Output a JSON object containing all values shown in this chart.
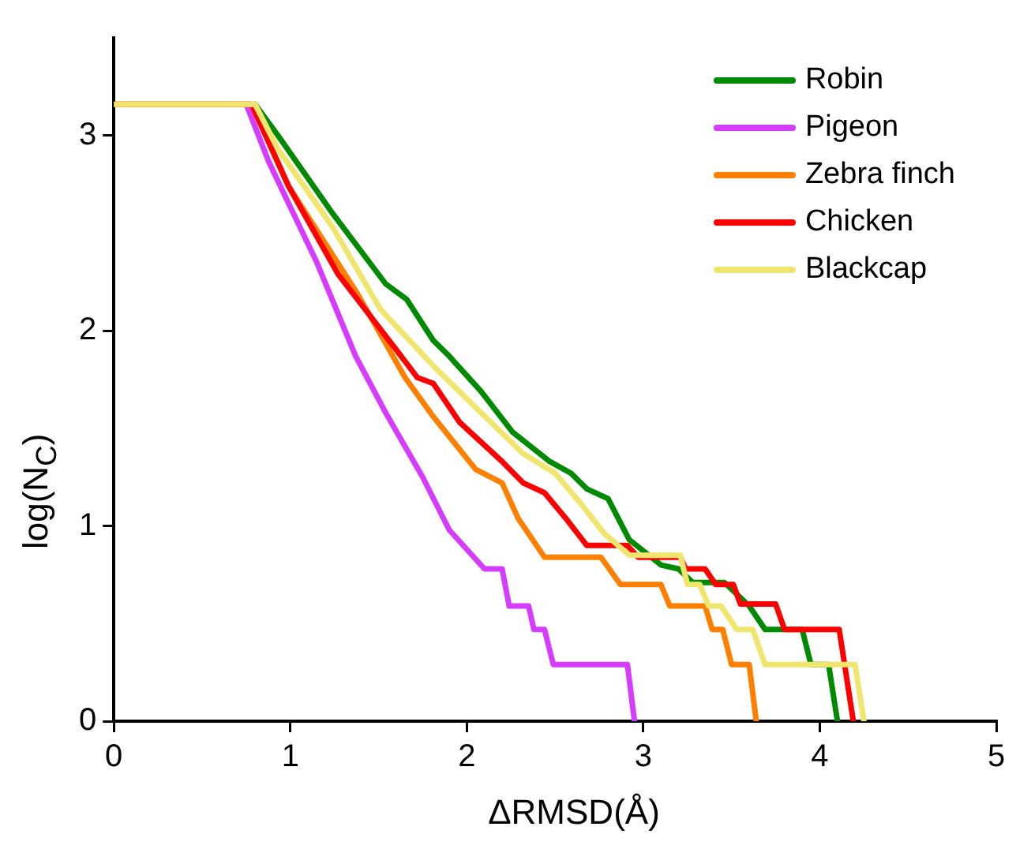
{
  "chart_data": {
    "type": "line",
    "xlabel": "ΔRMSD(Å)",
    "ylabel": "log(N$_{C}$)",
    "xlim": [
      0,
      5
    ],
    "xticks": [
      0,
      1,
      2,
      3,
      4,
      5
    ],
    "ylim": [
      0,
      3.5
    ],
    "yticks": [
      0,
      1,
      2,
      3
    ],
    "grid": false,
    "legend": "top right",
    "marker": "none",
    "line_style": "solid",
    "series": [
      {
        "name": "Robin",
        "color": "#008a00",
        "x": [
          0.8,
          0.93,
          1.24,
          1.54,
          1.66,
          1.81,
          1.9,
          2.08,
          2.26,
          2.47,
          2.59,
          2.68,
          2.8,
          2.92,
          3.1,
          3.2,
          3.28,
          3.46,
          3.6,
          3.69,
          3.9,
          3.95,
          4.05,
          4.1
        ],
        "values": [
          3.16,
          3.0,
          2.6,
          2.24,
          2.16,
          1.95,
          1.87,
          1.69,
          1.48,
          1.33,
          1.27,
          1.19,
          1.14,
          0.93,
          0.8,
          0.78,
          0.71,
          0.71,
          0.59,
          0.47,
          0.47,
          0.29,
          0.29,
          0
        ]
      },
      {
        "name": "Pigeon",
        "color": "#d63cff",
        "x": [
          0.75,
          0.88,
          1.15,
          1.37,
          1.54,
          1.75,
          1.9,
          2.1,
          2.2,
          2.24,
          2.35,
          2.38,
          2.44,
          2.49,
          2.91,
          2.95
        ],
        "values": [
          3.16,
          2.86,
          2.35,
          1.87,
          1.58,
          1.25,
          0.98,
          0.78,
          0.78,
          0.59,
          0.59,
          0.47,
          0.47,
          0.29,
          0.29,
          0
        ]
      },
      {
        "name": "Zebra finch",
        "color": "#ff8000",
        "x": [
          0,
          0.78,
          0.99,
          1.38,
          1.65,
          1.81,
          2.05,
          2.2,
          2.29,
          2.44,
          2.76,
          2.87,
          3.1,
          3.15,
          3.35,
          3.39,
          3.45,
          3.5,
          3.6,
          3.64
        ],
        "values": [
          3.16,
          3.16,
          2.74,
          2.19,
          1.76,
          1.56,
          1.29,
          1.22,
          1.04,
          0.84,
          0.84,
          0.7,
          0.7,
          0.59,
          0.59,
          0.47,
          0.47,
          0.29,
          0.29,
          0
        ]
      },
      {
        "name": "Chicken",
        "color": "#ff0000",
        "x": [
          0,
          0.78,
          0.99,
          1.27,
          1.56,
          1.72,
          1.81,
          1.96,
          2.2,
          2.32,
          2.44,
          2.56,
          2.68,
          2.91,
          2.97,
          3.21,
          3.24,
          3.35,
          3.41,
          3.51,
          3.55,
          3.75,
          3.8,
          4.11,
          4.19
        ],
        "values": [
          3.16,
          3.16,
          2.74,
          2.29,
          1.95,
          1.76,
          1.73,
          1.53,
          1.33,
          1.22,
          1.17,
          1.04,
          0.9,
          0.9,
          0.84,
          0.84,
          0.78,
          0.78,
          0.7,
          0.7,
          0.6,
          0.6,
          0.47,
          0.47,
          0
        ]
      },
      {
        "name": "Blackcap",
        "color": "#f0e66e",
        "x": [
          0,
          0.8,
          0.93,
          1.24,
          1.51,
          1.81,
          2.08,
          2.32,
          2.5,
          2.65,
          2.78,
          2.92,
          3.21,
          3.25,
          3.32,
          3.37,
          3.44,
          3.53,
          3.62,
          3.69,
          4.2,
          4.25
        ],
        "values": [
          3.16,
          3.16,
          2.93,
          2.53,
          2.11,
          1.82,
          1.58,
          1.37,
          1.27,
          1.11,
          0.96,
          0.85,
          0.85,
          0.7,
          0.7,
          0.59,
          0.59,
          0.47,
          0.47,
          0.29,
          0.29,
          0
        ]
      }
    ]
  }
}
